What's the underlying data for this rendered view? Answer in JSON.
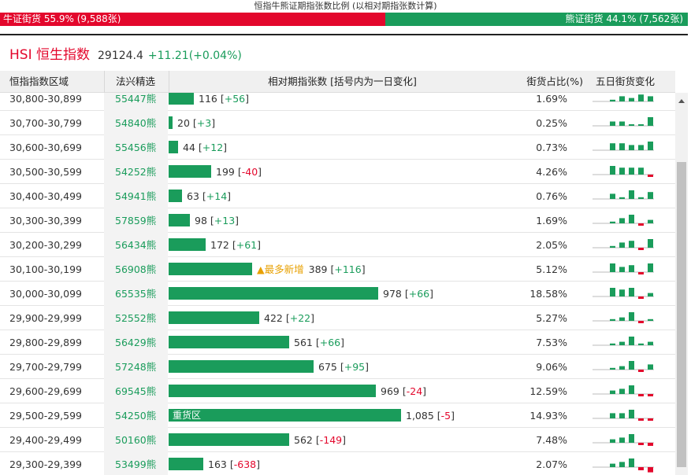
{
  "top_title": "恒指牛熊证期指张数比例 (以相对期指张数计算)",
  "ratio": {
    "bull_label": "牛证街货 55.9% (9,588张)",
    "bear_label": "熊证街货 44.1% (7,562张)",
    "bull_pct": 55.9,
    "bull_color": "#e3072c",
    "bear_color": "#1a9c5b"
  },
  "hsi": {
    "name": "HSI 恒生指数",
    "price": "29124.4",
    "change": "+11.21(+0.04%)"
  },
  "header": {
    "range": "恒指指数区域",
    "code": "法兴精选",
    "contracts": "相对期指张数 [括号内为一日变化]",
    "pct": "街货占比(%)",
    "five_day": "五日街货变化"
  },
  "max_contracts": 1085,
  "rows": [
    {
      "range": "30,800-30,899",
      "code": "55447熊",
      "contracts": 116,
      "contracts_text": "116",
      "delta": "[+56]",
      "neg": false,
      "pct": "1.69%",
      "tag": "",
      "spark": [
        0.2,
        0.6,
        0.4,
        0.8,
        0.6
      ]
    },
    {
      "range": "30,700-30,799",
      "code": "54840熊",
      "contracts": 20,
      "contracts_text": "20",
      "delta": "[+3]",
      "neg": false,
      "pct": "0.25%",
      "tag": "",
      "spark": [
        0.5,
        0.5,
        0,
        0,
        1
      ]
    },
    {
      "range": "30,600-30,699",
      "code": "55456熊",
      "contracts": 44,
      "contracts_text": "44",
      "delta": "[+12]",
      "neg": false,
      "pct": "0.73%",
      "tag": "",
      "spark": [
        0.8,
        0.8,
        0.6,
        0.6,
        1
      ]
    },
    {
      "range": "30,500-30,599",
      "code": "54252熊",
      "contracts": 199,
      "contracts_text": "199",
      "delta": "[-40]",
      "neg": true,
      "pct": "4.26%",
      "tag": "",
      "spark": [
        1,
        0.8,
        0.8,
        0.8,
        -0.4
      ]
    },
    {
      "range": "30,400-30,499",
      "code": "54941熊",
      "contracts": 63,
      "contracts_text": "63",
      "delta": "[+14]",
      "neg": false,
      "pct": "0.76%",
      "tag": "",
      "spark": [
        0.6,
        0.2,
        1,
        0.2,
        0.8
      ]
    },
    {
      "range": "30,300-30,399",
      "code": "57859熊",
      "contracts": 98,
      "contracts_text": "98",
      "delta": "[+13]",
      "neg": false,
      "pct": "1.69%",
      "tag": "",
      "spark": [
        0.2,
        0.6,
        1,
        -0.3,
        0.4
      ]
    },
    {
      "range": "30,200-30,299",
      "code": "56434熊",
      "contracts": 172,
      "contracts_text": "172",
      "delta": "[+61]",
      "neg": false,
      "pct": "2.05%",
      "tag": "",
      "spark": [
        0.2,
        0.6,
        0.8,
        -0.3,
        1
      ]
    },
    {
      "range": "30,100-30,199",
      "code": "56908熊",
      "contracts": 389,
      "contracts_text": "389",
      "delta": "[+116]",
      "neg": false,
      "pct": "5.12%",
      "tag": "▲最多新增",
      "spark": [
        1,
        0.6,
        0.8,
        -0.3,
        1
      ]
    },
    {
      "range": "30,000-30,099",
      "code": "65535熊",
      "contracts": 978,
      "contracts_text": "978",
      "delta": "[+66]",
      "neg": false,
      "pct": "18.58%",
      "tag": "",
      "spark": [
        1,
        0.8,
        1,
        -0.3,
        0.4
      ]
    },
    {
      "range": "29,900-29,999",
      "code": "52552熊",
      "contracts": 422,
      "contracts_text": "422",
      "delta": "[+22]",
      "neg": false,
      "pct": "5.27%",
      "tag": "",
      "spark": [
        0.2,
        0.4,
        1,
        -0.2,
        0.2
      ]
    },
    {
      "range": "29,800-29,899",
      "code": "56429熊",
      "contracts": 561,
      "contracts_text": "561",
      "delta": "[+66]",
      "neg": false,
      "pct": "7.53%",
      "tag": "",
      "spark": [
        0.2,
        0.4,
        1,
        0.2,
        0.4
      ]
    },
    {
      "range": "29,700-29,799",
      "code": "57248熊",
      "contracts": 675,
      "contracts_text": "675",
      "delta": "[+95]",
      "neg": false,
      "pct": "9.06%",
      "tag": "",
      "spark": [
        0.2,
        0.4,
        1,
        -0.2,
        0.6
      ]
    },
    {
      "range": "29,600-29,699",
      "code": "69545熊",
      "contracts": 969,
      "contracts_text": "969",
      "delta": "[-24]",
      "neg": true,
      "pct": "12.59%",
      "tag": "",
      "spark": [
        0.4,
        0.6,
        1,
        -0.3,
        -0.2
      ]
    },
    {
      "range": "29,500-29,599",
      "code": "54250熊",
      "contracts": 1085,
      "contracts_text": "1,085",
      "delta": "[-5]",
      "neg": true,
      "pct": "14.93%",
      "tag": "重货区",
      "spark": [
        0.6,
        0.6,
        1,
        -0.3,
        -0.2
      ]
    },
    {
      "range": "29,400-29,499",
      "code": "50160熊",
      "contracts": 562,
      "contracts_text": "562",
      "delta": "[-149]",
      "neg": true,
      "pct": "7.48%",
      "tag": "",
      "spark": [
        0.4,
        0.6,
        1,
        -0.4,
        -0.6
      ]
    },
    {
      "range": "29,300-29,399",
      "code": "53499熊",
      "contracts": 163,
      "contracts_text": "163",
      "delta": "[-638]",
      "neg": true,
      "pct": "2.07%",
      "tag": "",
      "spark": [
        0.4,
        0.6,
        1,
        -0.6,
        -1
      ]
    }
  ]
}
